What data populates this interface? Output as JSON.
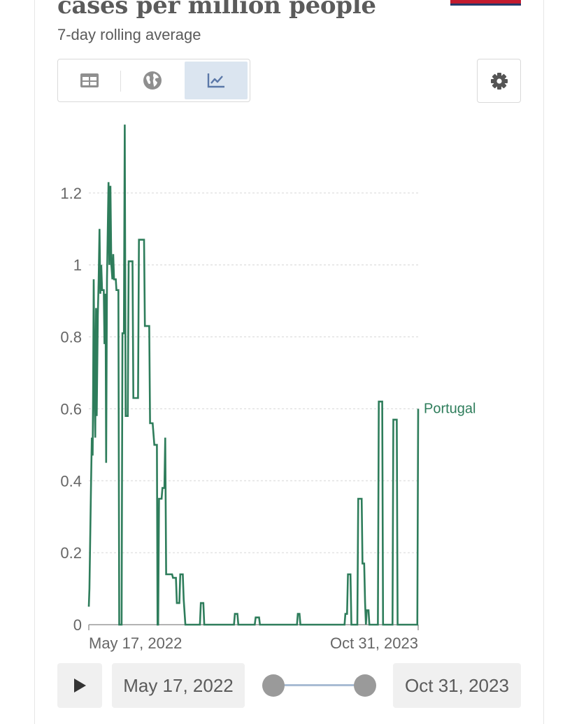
{
  "header": {
    "title": "cases per million people",
    "subtitle": "7-day rolling average"
  },
  "toolbar": {
    "tabs": [
      {
        "name": "table-tab",
        "icon": "table-icon"
      },
      {
        "name": "map-tab",
        "icon": "globe-icon"
      },
      {
        "name": "chart-tab",
        "icon": "line-chart-icon",
        "active": true
      }
    ],
    "settings_icon": "gear-icon"
  },
  "chart_data": {
    "type": "line",
    "title": "cases per million people",
    "subtitle": "7-day rolling average",
    "xlabel": "",
    "ylabel": "",
    "x_range": [
      "May 17, 2022",
      "Oct 31, 2023"
    ],
    "x_tick_labels": [
      "May 17, 2022",
      "Oct 31, 2023"
    ],
    "ylim": [
      0,
      1.4
    ],
    "y_ticks": [
      0,
      0.2,
      0.4,
      0.6,
      0.8,
      1,
      1.2
    ],
    "y_tick_labels": [
      "0",
      "0.2",
      "0.4",
      "0.6",
      "0.8",
      "1",
      "1.2"
    ],
    "grid": "horizontal dashed",
    "line_color": "#2e7d5b",
    "series": [
      {
        "name": "Portugal",
        "x_unit": "days since May 17, 2022",
        "points": [
          [
            0,
            0.05
          ],
          [
            0.3,
            0.1
          ],
          [
            1,
            0.38
          ],
          [
            1.4,
            0.52
          ],
          [
            1.8,
            0.47
          ],
          [
            2,
            0.63
          ],
          [
            2.3,
            0.96
          ],
          [
            2.7,
            0.64
          ],
          [
            3,
            0.52
          ],
          [
            3.4,
            0.88
          ],
          [
            3.7,
            0.58
          ],
          [
            4.2,
            0.86
          ],
          [
            4.6,
            0.96
          ],
          [
            5,
            1.1
          ],
          [
            5.4,
            0.92
          ],
          [
            5.8,
            1.0
          ],
          [
            6.2,
            0.93
          ],
          [
            7,
            0.93
          ],
          [
            7.3,
            0.78
          ],
          [
            7.8,
            0.92
          ],
          [
            8.1,
            0.45
          ],
          [
            8.5,
            0.96
          ],
          [
            8.8,
            1.07
          ],
          [
            9.2,
            1.23
          ],
          [
            9.6,
            1.0
          ],
          [
            10.1,
            1.22
          ],
          [
            10.5,
            1.0
          ],
          [
            11,
            0.96
          ],
          [
            11.4,
            1.03
          ],
          [
            11.8,
            0.96
          ],
          [
            12.6,
            0.96
          ],
          [
            12.9,
            0.93
          ],
          [
            13.8,
            0.93
          ],
          [
            14.2,
            0.0
          ],
          [
            15.3,
            0.0
          ],
          [
            15.7,
            0.81
          ],
          [
            16.4,
            0.81
          ],
          [
            16.8,
            1.39
          ],
          [
            17.2,
            0.58
          ],
          [
            18.2,
            0.58
          ],
          [
            18.6,
            1.01
          ],
          [
            20.4,
            1.01
          ],
          [
            20.8,
            0.63
          ],
          [
            23,
            0.63
          ],
          [
            23.4,
            1.07
          ],
          [
            25.8,
            1.07
          ],
          [
            26.2,
            0.83
          ],
          [
            28.2,
            0.83
          ],
          [
            28.6,
            0.56
          ],
          [
            29.8,
            0.56
          ],
          [
            30.6,
            0.5
          ],
          [
            31.8,
            0.5
          ],
          [
            32.1,
            0.0
          ],
          [
            32.4,
            0.0
          ],
          [
            32.8,
            0.35
          ],
          [
            34,
            0.35
          ],
          [
            34.4,
            0.38
          ],
          [
            35.3,
            0.38
          ],
          [
            35.7,
            0.52
          ],
          [
            36.1,
            0.14
          ],
          [
            38.9,
            0.14
          ],
          [
            39.3,
            0.13
          ],
          [
            40.7,
            0.13
          ],
          [
            41.1,
            0.06
          ],
          [
            42.3,
            0.06
          ],
          [
            42.7,
            0.14
          ],
          [
            43.9,
            0.14
          ],
          [
            44.3,
            0.07
          ],
          [
            45.1,
            0.0
          ],
          [
            51.9,
            0.0
          ],
          [
            52.3,
            0.06
          ],
          [
            53.5,
            0.06
          ],
          [
            53.9,
            0.0
          ],
          [
            67.8,
            0.0
          ],
          [
            68.2,
            0.03
          ],
          [
            69.4,
            0.03
          ],
          [
            69.8,
            0.0
          ],
          [
            77.5,
            0.0
          ],
          [
            77.9,
            0.02
          ],
          [
            79.5,
            0.02
          ],
          [
            79.9,
            0.0
          ],
          [
            97.2,
            0.0
          ],
          [
            97.6,
            0.03
          ],
          [
            98.4,
            0.03
          ],
          [
            98.8,
            0.0
          ],
          [
            119.4,
            0.0
          ],
          [
            119.8,
            0.03
          ],
          [
            120.6,
            0.03
          ],
          [
            121,
            0.14
          ],
          [
            122.2,
            0.14
          ],
          [
            122.6,
            0.0
          ],
          [
            125.4,
            0.0
          ],
          [
            125.8,
            0.35
          ],
          [
            127.4,
            0.35
          ],
          [
            127.8,
            0.17
          ],
          [
            128.6,
            0.17
          ],
          [
            129,
            0.06
          ],
          [
            129.4,
            0.0
          ],
          [
            129.8,
            0.04
          ],
          [
            130.6,
            0.04
          ],
          [
            131,
            0.0
          ],
          [
            135,
            0.0
          ],
          [
            135.4,
            0.62
          ],
          [
            137,
            0.62
          ],
          [
            137.4,
            0.0
          ],
          [
            141.8,
            0.0
          ],
          [
            142.2,
            0.57
          ],
          [
            143.8,
            0.57
          ],
          [
            144.2,
            0.0
          ],
          [
            153.4,
            0.0
          ],
          [
            153.8,
            0.6
          ]
        ]
      }
    ],
    "series_labels": [
      "Portugal"
    ]
  },
  "timeline": {
    "play_icon": "play-icon",
    "start_date": "May 17, 2022",
    "end_date": "Oct 31, 2023"
  }
}
